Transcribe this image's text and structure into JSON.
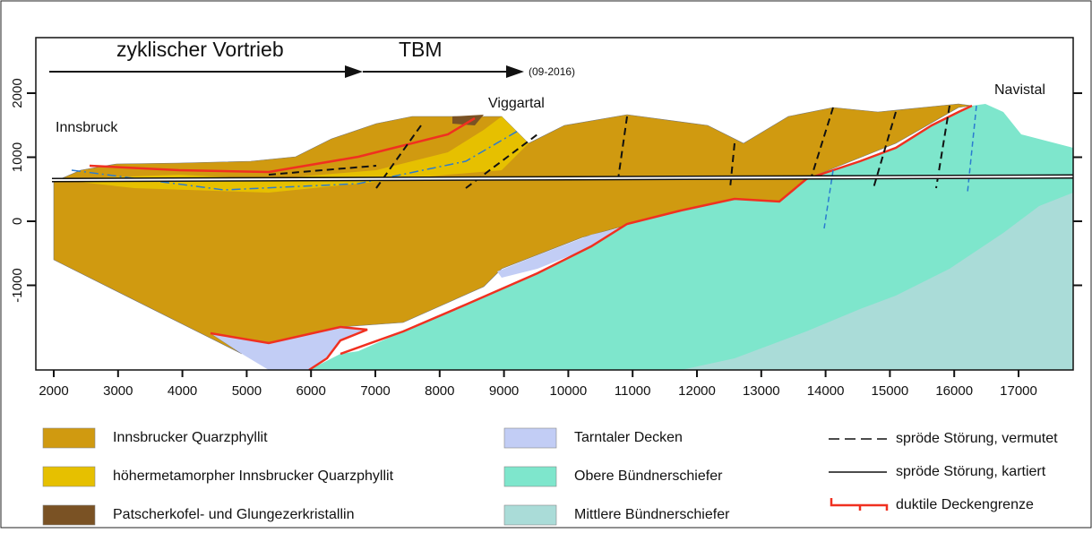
{
  "header": {
    "cyclic": "zyklischer Vortrieb",
    "tbm": "TBM",
    "date": "(09-2016)"
  },
  "places": [
    {
      "label": "Innsbruck"
    },
    {
      "label": "Viggartal"
    },
    {
      "label": "Navistal"
    }
  ],
  "x_axis": {
    "ticks": [
      2000,
      3000,
      4000,
      5000,
      6000,
      7000,
      8000,
      9000,
      10000,
      11000,
      12000,
      13000,
      14000,
      15000,
      16000,
      17000
    ]
  },
  "y_axis": {
    "ticks": [
      2000,
      1000,
      0,
      -1000
    ]
  },
  "legend": {
    "units": [
      {
        "label": "Innsbrucker Quarzphyllit",
        "color": "#d09a10"
      },
      {
        "label": "höhermetamorpher Innsbrucker Quarzphyllit",
        "color": "#e6c000"
      },
      {
        "label": "Patscherkofel- und Glungezerkristallin",
        "color": "#7a5224"
      },
      {
        "label": "Tarntaler Decken",
        "color": "#c2cdf5"
      },
      {
        "label": "Obere Bündnerschiefer",
        "color": "#7ee6cc"
      },
      {
        "label": "Mittlere Bündnerschiefer",
        "color": "#aadcd8"
      }
    ],
    "lines": [
      {
        "label": "spröde Störung, vermutet"
      },
      {
        "label": "spröde Störung, kartiert"
      },
      {
        "label": "duktile Deckengrenze"
      }
    ]
  }
}
